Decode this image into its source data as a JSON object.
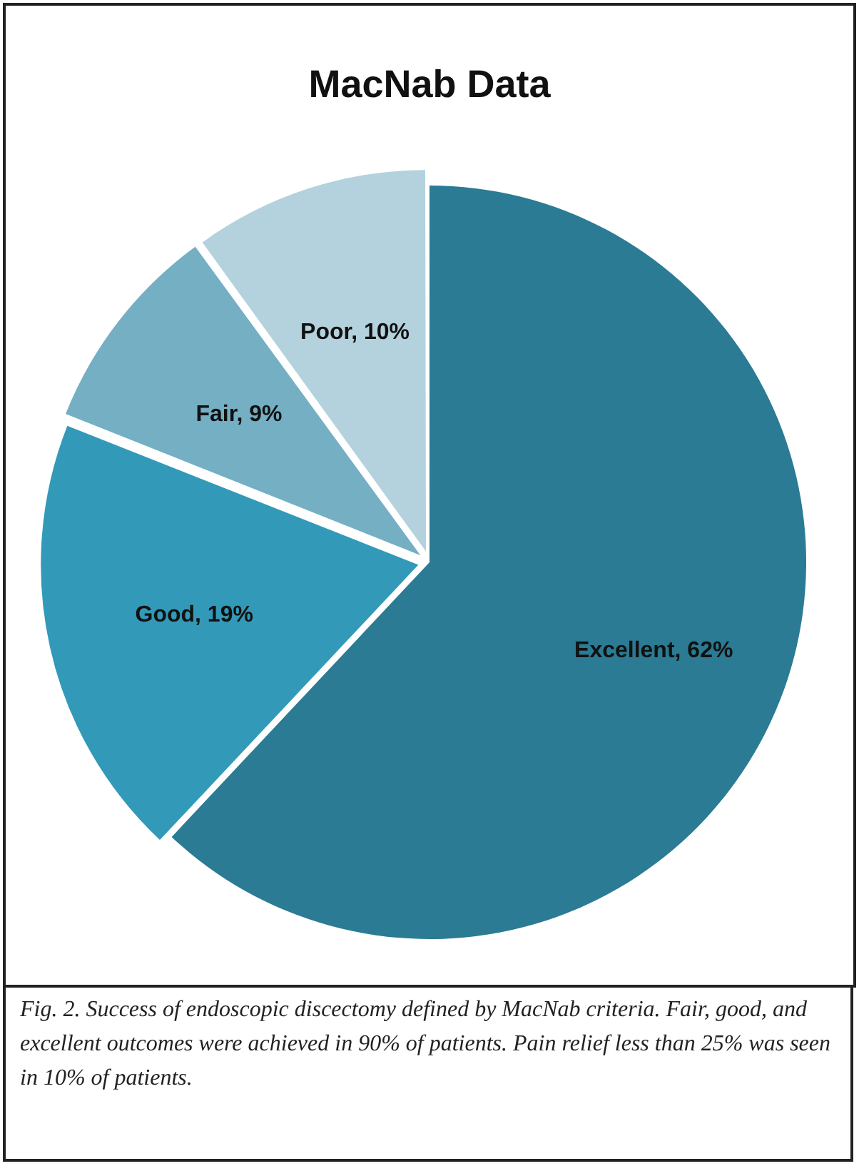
{
  "chart_data": {
    "type": "pie",
    "title": "MacNab Data",
    "categories": [
      "Excellent",
      "Good",
      "Fair",
      "Poor"
    ],
    "values": [
      62,
      19,
      9,
      10
    ],
    "value_labels": [
      "62%",
      "19%",
      "9%",
      "10%"
    ],
    "colors": [
      "#2a7b93",
      "#3399b8",
      "#74afc4",
      "#b3d2dd"
    ],
    "legend": false,
    "annotations": [
      "Fig. 2. Success of endoscopic discectomy defined by MacNab criteria. Fair, good, and excellent outcomes were achieved in 90% of patients. Pain relief less than 25% was seen in 10% of patients."
    ]
  }
}
